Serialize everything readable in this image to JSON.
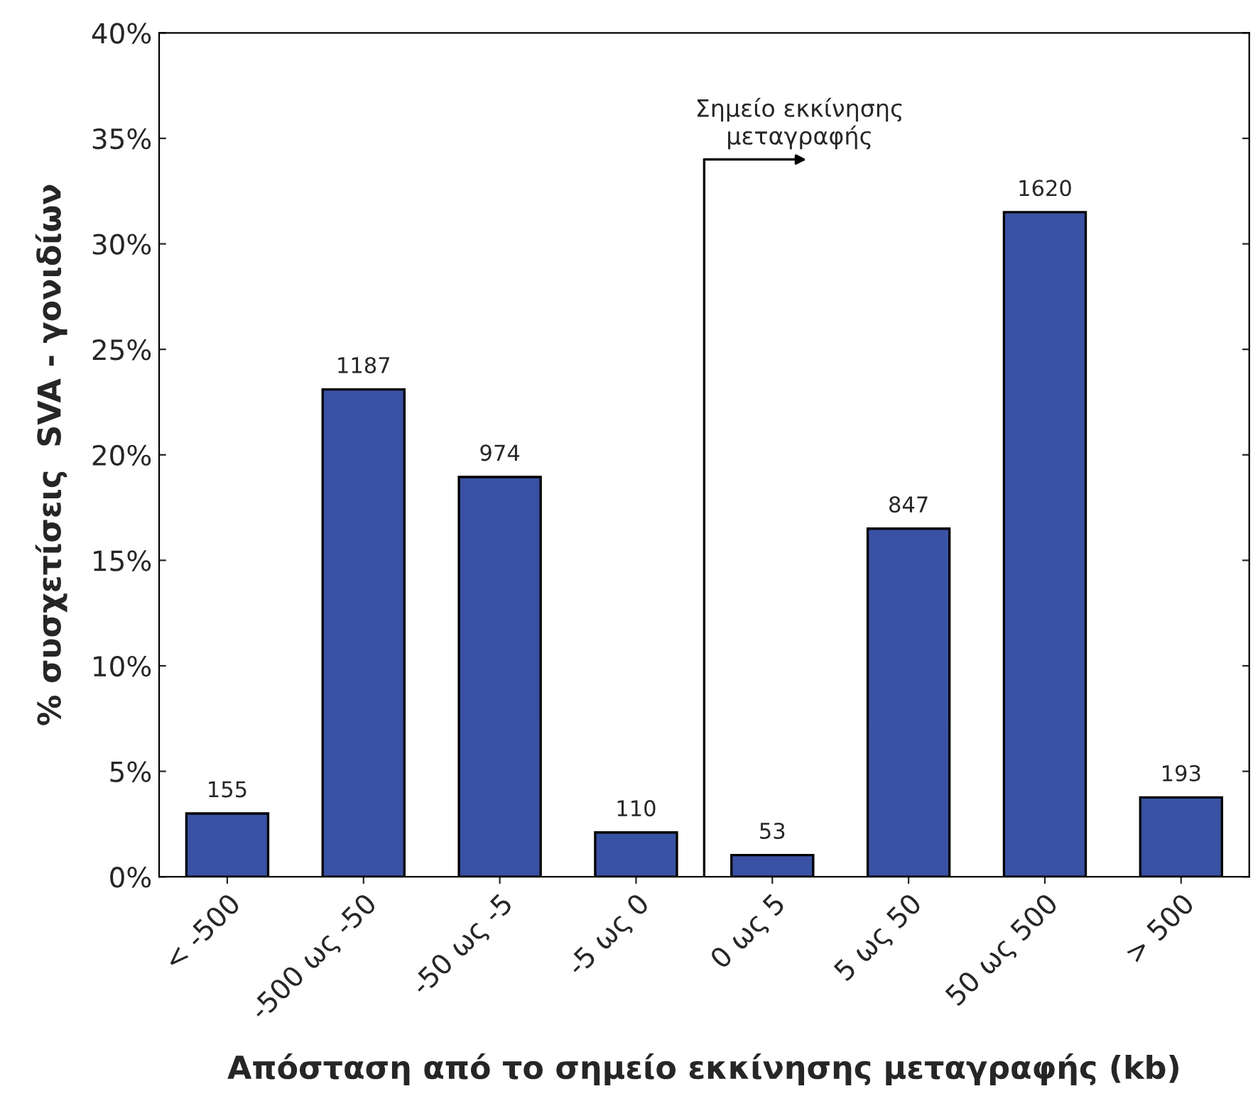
{
  "chart_data": {
    "type": "bar",
    "xlabel": "Απόσταση από το σημείο εκκίνησης μεταγραφής (kb)",
    "ylabel": "% συσχετίσεις  SVA - γονιδίων",
    "categories": [
      "< -500",
      "-500 ως -50",
      "-50 ως -5",
      "-5 ως 0",
      "0 ως 5",
      "5 ως 50",
      "50 ως 500",
      "> 500"
    ],
    "values": [
      3.0,
      23.1,
      18.95,
      2.1,
      1.03,
      16.5,
      31.5,
      3.76
    ],
    "annotations": [
      {
        "text": "155",
        "x": "< -500",
        "y": 3.0
      },
      {
        "text": "1187",
        "x": "-500 ως -50",
        "y": 23.1
      },
      {
        "text": "974",
        "x": "-50 ως -5",
        "y": 18.95
      },
      {
        "text": "110",
        "x": "-5 ως 0",
        "y": 2.1
      },
      {
        "text": "53",
        "x": "0 ως 5",
        "y": 1.03
      },
      {
        "text": "847",
        "x": "5 ως 50",
        "y": 16.5
      },
      {
        "text": "1620",
        "x": "50 ως 500",
        "y": 31.5
      },
      {
        "text": "193",
        "x": "> 500",
        "y": 3.76
      },
      "Σημείο εκκίνησης\nμεταγραφής"
    ],
    "color": "#3a52a4",
    "ylim": [
      0,
      40
    ],
    "yticks": [
      {
        "value": 0,
        "label": "0%"
      },
      {
        "value": 5,
        "label": "5%"
      },
      {
        "value": 10,
        "label": "10%"
      },
      {
        "value": 15,
        "label": "15%"
      },
      {
        "value": 20,
        "label": "20%"
      },
      {
        "value": 25,
        "label": "25%"
      },
      {
        "value": 30,
        "label": "30%"
      },
      {
        "value": 35,
        "label": "35%"
      },
      {
        "value": 40,
        "label": "40%"
      }
    ],
    "grid": false
  }
}
